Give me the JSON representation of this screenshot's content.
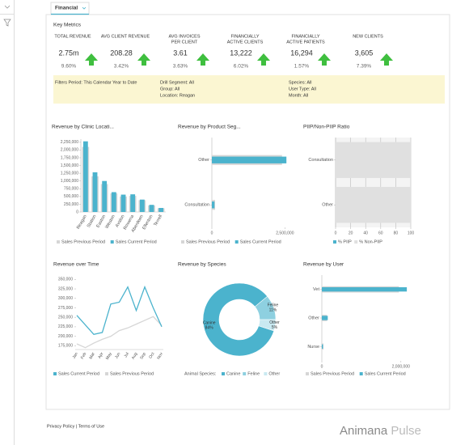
{
  "tab": "Financial",
  "key_metrics": {
    "title": "Key Metrics",
    "items": [
      {
        "label": [
          "TOTAL REVENUE"
        ],
        "value": "2.75m",
        "change": "9.60%"
      },
      {
        "label": [
          "AVG CLIENT REVENUE"
        ],
        "value": "208.28",
        "change": "3.42%"
      },
      {
        "label": [
          "AVG INVOICES",
          "PER CLIENT"
        ],
        "value": "3.61",
        "change": "3.63%"
      },
      {
        "label": [
          "FINANCIALLY",
          "ACTIVE CLIENTS"
        ],
        "value": "13,222",
        "change": "6.02%"
      },
      {
        "label": [
          "FINANCIALLY",
          "ACTIVE PATIENTS"
        ],
        "value": "16,294",
        "change": "1.57%"
      },
      {
        "label": [
          "NEW CLIENTS"
        ],
        "value": "3,605",
        "change": "7.39%"
      }
    ]
  },
  "filters": {
    "period": "Filters Period: This Calendar Year to Date",
    "drill": [
      "Drill Segment: All",
      "Group: All",
      "Location: Reagan"
    ],
    "other": [
      "Species: All",
      "User Type: All",
      "Month: All"
    ]
  },
  "chart_data": [
    {
      "type": "bar",
      "title": "Revenue by Clinic Locati...",
      "categories": [
        "Reagan",
        "Station",
        "Easton",
        "Weston",
        "Avalon",
        "Rowena",
        "Aberdeen",
        "Ellenton",
        "Terrell"
      ],
      "series": [
        {
          "name": "Sales Previous Period",
          "color": "#d6d6d6",
          "values": [
            2100000,
            1150000,
            900000,
            600000,
            500000,
            520000,
            380000,
            210000,
            120000
          ]
        },
        {
          "name": "Sales Current Period",
          "color": "#4bb3cd",
          "values": [
            2280000,
            1280000,
            1000000,
            640000,
            560000,
            570000,
            400000,
            230000,
            130000
          ]
        }
      ],
      "ylim": [
        0,
        2350000
      ],
      "yticks": [
        0,
        {
          "value": 250000,
          "label": "250,000"
        },
        {
          "value": 500000,
          "label": "500,000"
        },
        {
          "value": 750000,
          "label": "750,000"
        },
        {
          "value": 1000000,
          "label": "1,000,000"
        },
        {
          "value": 1250000,
          "label": "1,250,000"
        },
        {
          "value": 1500000,
          "label": "1,500,000"
        },
        {
          "value": 1750000,
          "label": "1,750,000"
        },
        {
          "value": 2000000,
          "label": "2,000,000"
        },
        {
          "value": 2250000,
          "label": "2,250,000"
        }
      ]
    },
    {
      "type": "hbar",
      "title": "Revenue by Product Seg...",
      "categories": [
        "Other",
        "Consultation"
      ],
      "series": [
        {
          "name": "Sales Previous Period",
          "color": "#d6d6d6",
          "values": [
            2400000,
            110000
          ]
        },
        {
          "name": "Sales Current Period",
          "color": "#4bb3cd",
          "values": [
            2550000,
            90000
          ]
        }
      ],
      "xlim": [
        0,
        2600000
      ],
      "xticks": [
        0,
        {
          "value": 2500000,
          "label": "2,500,000"
        }
      ]
    },
    {
      "type": "stacked-hbar",
      "title": "PIIP/Non-PIIP Ratio",
      "categories": [
        "Consultation",
        "Other"
      ],
      "series": [
        {
          "name": "% PIIP",
          "color": "#4bb3cd",
          "values": [
            0,
            0
          ]
        },
        {
          "name": "% Non-PIIP",
          "color": "#e0e0e0",
          "values": [
            100,
            100
          ]
        }
      ],
      "xlim": [
        0,
        100
      ],
      "xticks": [
        0,
        20,
        40,
        60,
        80,
        100
      ]
    },
    {
      "type": "line",
      "title": "Revenue over Time",
      "categories": [
        "Jan",
        "Feb",
        "Mar",
        "Apr",
        "May",
        "Jun",
        "Jul",
        "Aug",
        "Sep",
        "Oct",
        "Nov"
      ],
      "series": [
        {
          "name": "Sales Current Period",
          "color": "#4bb3cd",
          "values": [
            255000,
            230000,
            205000,
            210000,
            285000,
            290000,
            330000,
            268000,
            330000,
            275000,
            225000
          ]
        },
        {
          "name": "Sales Previous Period",
          "color": "#d6d6d6",
          "values": [
            180000,
            170000,
            182000,
            192000,
            200000,
            215000,
            222000,
            232000,
            242000,
            252000,
            228000
          ]
        }
      ],
      "ylim": [
        165000,
        355000
      ],
      "yticks": [
        {
          "value": 175000,
          "label": "175,000"
        },
        {
          "value": 200000,
          "label": "200,000"
        },
        {
          "value": 225000,
          "label": "225,000"
        },
        {
          "value": 250000,
          "label": "250,000"
        },
        {
          "value": 275000,
          "label": "275,000"
        },
        {
          "value": 300000,
          "label": "300,000"
        },
        {
          "value": 325000,
          "label": "325,000"
        },
        {
          "value": 350000,
          "label": "350,000"
        }
      ]
    },
    {
      "type": "pie",
      "title": "Revenue by Species",
      "legend_title": "Animal Species:",
      "categories": [
        "Canine",
        "Feline",
        "Other"
      ],
      "values": [
        84,
        11,
        5
      ],
      "value_labels": [
        "84%",
        "11%",
        "5%"
      ],
      "colors": [
        "#4bb3cd",
        "#8ed0e0",
        "#c9e9f1"
      ]
    },
    {
      "type": "hbar",
      "title": "Revenue by User",
      "categories": [
        "Vet",
        "Other",
        "Nurse"
      ],
      "series": [
        {
          "name": "Sales Previous Period",
          "color": "#d6d6d6",
          "values": [
            1950000,
            130000,
            40000
          ]
        },
        {
          "name": "Sales Current Period",
          "color": "#4bb3cd",
          "values": [
            2150000,
            150000,
            30000
          ]
        }
      ],
      "xlim": [
        0,
        2250000
      ],
      "xticks": [
        0,
        {
          "value": 2000000,
          "label": "2,000,000"
        }
      ]
    }
  ],
  "footer": {
    "links": "Privacy Policy | Terms of Use",
    "brand": "Animana",
    "product": "Pulse"
  }
}
